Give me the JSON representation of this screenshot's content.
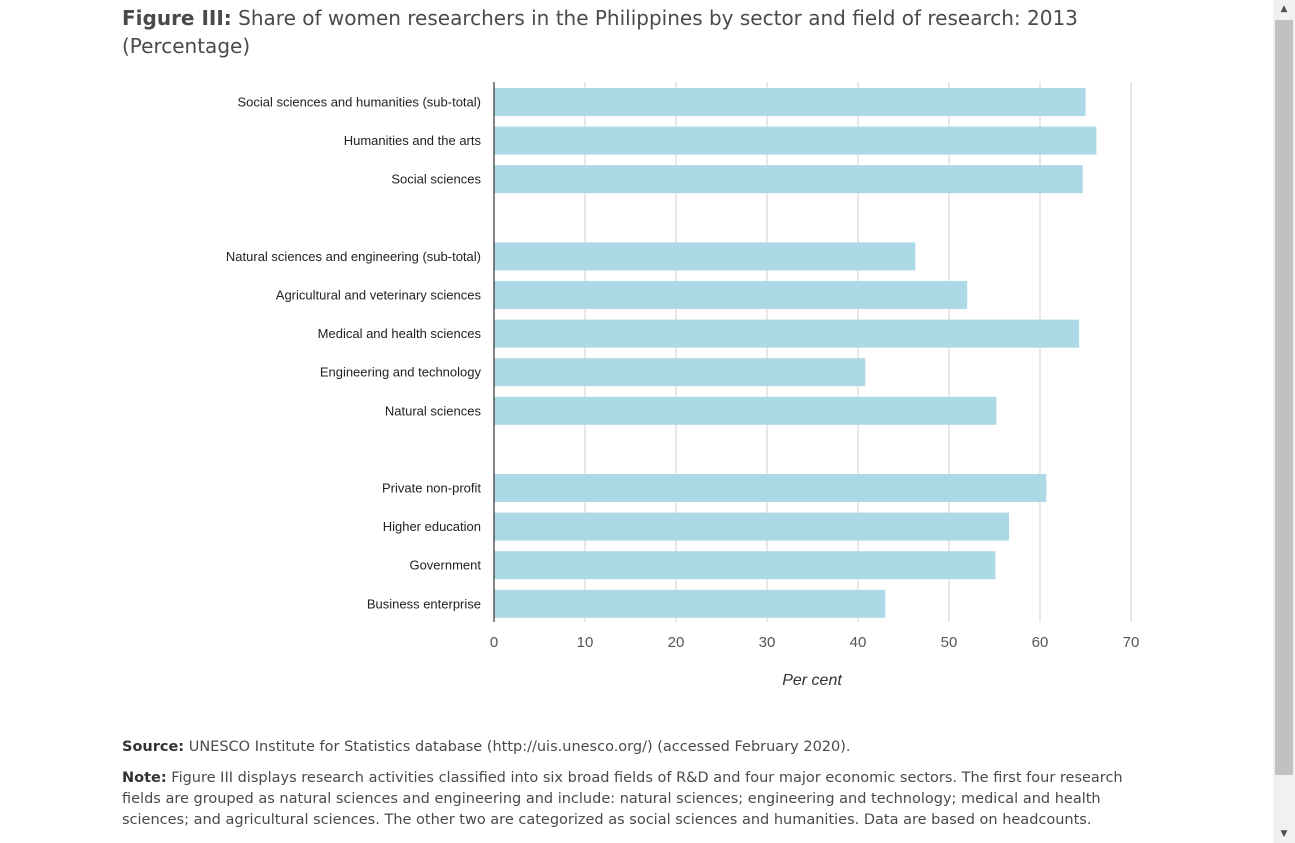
{
  "title": {
    "lead": "Figure III:",
    "text": "Share of women researchers in the Philippines by sector and field of research: 2013 (Percentage)"
  },
  "chart_data": {
    "type": "bar",
    "orientation": "horizontal",
    "categories": [
      "Social sciences and humanities (sub-total)",
      "Humanities and the arts",
      "Social sciences",
      "",
      "Natural sciences and engineering (sub-total)",
      "Agricultural and veterinary sciences",
      "Medical and health sciences",
      "Engineering and technology",
      "Natural sciences",
      "",
      "Private non-profit",
      "Higher education",
      "Government",
      "Business enterprise"
    ],
    "values": [
      65,
      66.2,
      64.7,
      null,
      46.3,
      52,
      64.3,
      40.8,
      55.2,
      null,
      60.7,
      56.6,
      55.1,
      43
    ],
    "xlabel": "Per cent",
    "xlim": [
      0,
      70
    ],
    "xticks": [
      "0",
      "10",
      "20",
      "30",
      "40",
      "50",
      "60",
      "70"
    ],
    "bar_color": "#add8e6",
    "grid": true
  },
  "footer": {
    "source_label": "Source:",
    "source_text": "UNESCO Institute for Statistics database (http://uis.unesco.org/) (accessed February 2020).",
    "note_label": "Note:",
    "note_text": "Figure III displays research activities classified into six broad fields of R&D and four major economic sectors. The first four research fields are grouped as natural sciences and engineering and include: natural sciences; engineering and technology; medical and health sciences; and agricultural sciences. The other two are categorized as social sciences and humanities. Data are based on headcounts."
  },
  "scrollbar": {
    "up_arrow_icon": "triangle-up-icon",
    "down_arrow_icon": "triangle-down-icon"
  }
}
